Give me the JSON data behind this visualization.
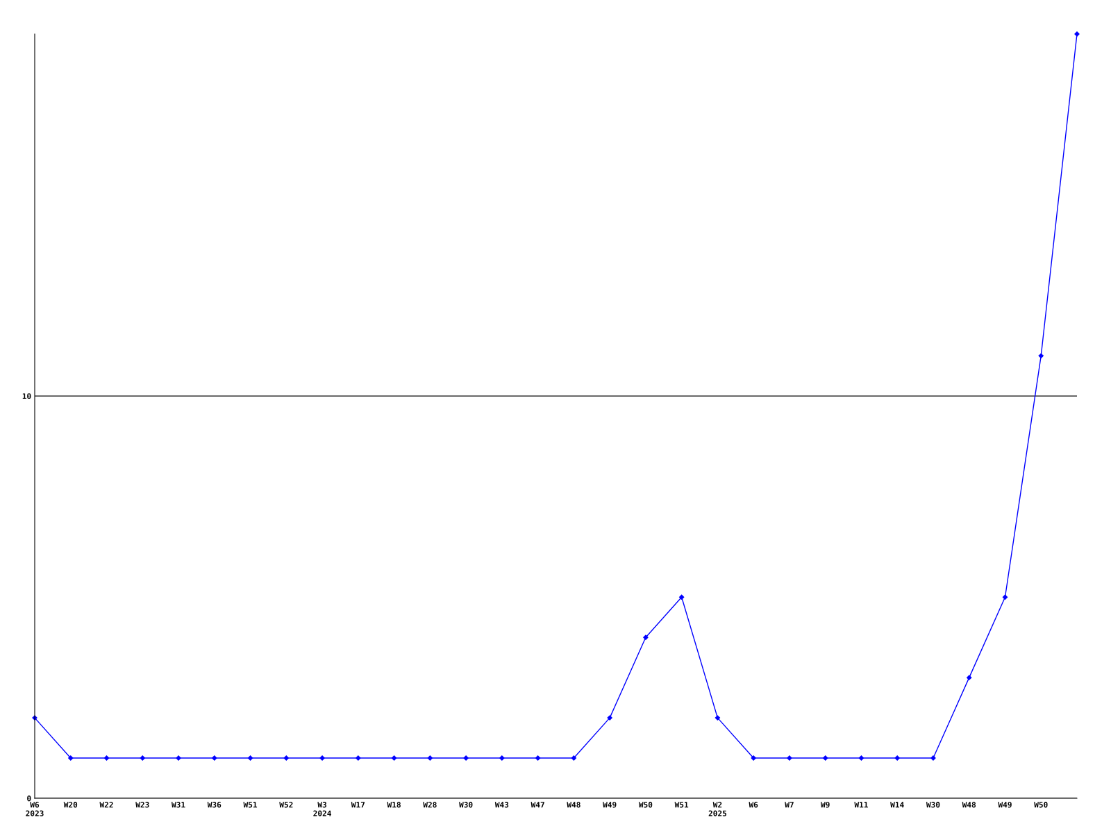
{
  "chart_data": {
    "type": "line",
    "categories": [
      "W6\n2023",
      "W20",
      "W22",
      "W23",
      "W31",
      "W36",
      "W51",
      "W52",
      "W3\n2024",
      "W17",
      "W18",
      "W28",
      "W30",
      "W43",
      "W47",
      "W48",
      "W49",
      "W50",
      "W51",
      "W2\n2025",
      "W6",
      "W7",
      "W9",
      "W11",
      "W14",
      "W30",
      "W48",
      "W49",
      "W50",
      null
    ],
    "series": [
      {
        "color": "#0000ff",
        "values": [
          2,
          1,
          1,
          1,
          1,
          1,
          1,
          1,
          1,
          1,
          1,
          1,
          1,
          1,
          1,
          1,
          2,
          4,
          5,
          2,
          1,
          1,
          1,
          1,
          1,
          1,
          3,
          5,
          11,
          19
        ]
      }
    ],
    "ylim": [
      0,
      19
    ],
    "yticks": [
      0,
      10
    ],
    "grid": "y",
    "marker": "diamond",
    "line_style": "solid",
    "legend": false
  }
}
